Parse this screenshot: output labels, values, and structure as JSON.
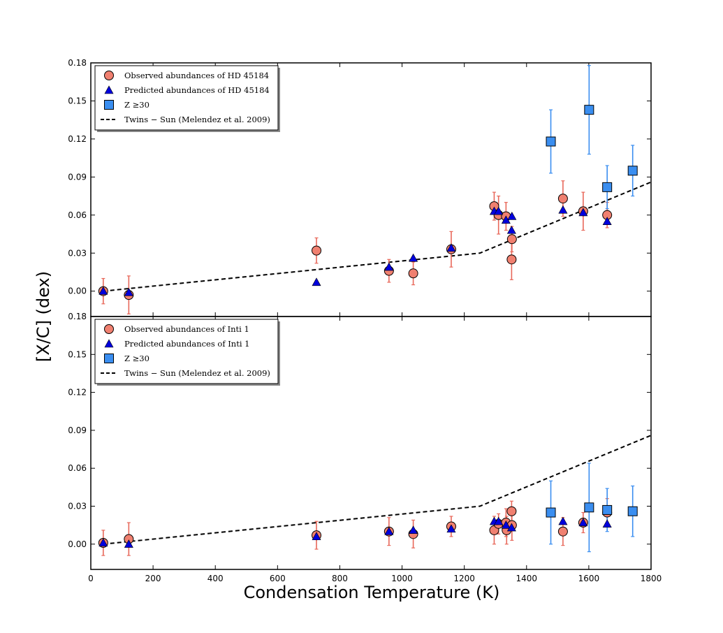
{
  "figure": {
    "xlabel": "Condensation Temperature (K)",
    "ylabel": "[X/C] (dex)",
    "xlim": [
      0,
      1800
    ],
    "x_ticks": [
      0,
      200,
      400,
      600,
      800,
      1000,
      1200,
      1400,
      1600,
      1800
    ],
    "y_ticks": [
      "0.00",
      "0.03",
      "0.06",
      "0.09",
      "0.12",
      "0.15",
      "0.18"
    ]
  },
  "colors": {
    "observed": "#f08070",
    "observed_err": "#e8685a",
    "predicted": "#0000dd",
    "heavy": "#3a8ef0",
    "heavy_err": "#3a8ef0",
    "trend": "#000000"
  },
  "chart_data": [
    {
      "type": "scatter",
      "panel": "top",
      "ylim": [
        -0.02,
        0.18
      ],
      "legend": {
        "placement": "top-left",
        "entries": [
          "Observed abundances of HD 45184",
          "Predicted abundances of HD 45184",
          "Z ≥30",
          "Twins − Sun (Melendez et al. 2009)"
        ]
      },
      "series": [
        {
          "name": "Observed abundances of HD 45184",
          "marker": "circle",
          "points": [
            {
              "x": 40,
              "y": 0.0,
              "err": 0.01
            },
            {
              "x": 122,
              "y": -0.003,
              "err": 0.015
            },
            {
              "x": 725,
              "y": 0.032,
              "err": 0.01
            },
            {
              "x": 958,
              "y": 0.016,
              "err": 0.009
            },
            {
              "x": 1036,
              "y": 0.014,
              "err": 0.009
            },
            {
              "x": 1158,
              "y": 0.033,
              "err": 0.014
            },
            {
              "x": 1296,
              "y": 0.067,
              "err": 0.011
            },
            {
              "x": 1310,
              "y": 0.06,
              "err": 0.015
            },
            {
              "x": 1334,
              "y": 0.059,
              "err": 0.011
            },
            {
              "x": 1352,
              "y": 0.025,
              "err": 0.016
            },
            {
              "x": 1353,
              "y": 0.041,
              "err": 0.01
            },
            {
              "x": 1517,
              "y": 0.073,
              "err": 0.014
            },
            {
              "x": 1582,
              "y": 0.063,
              "err": 0.015
            },
            {
              "x": 1659,
              "y": 0.06,
              "err": 0.01
            }
          ]
        },
        {
          "name": "Predicted abundances of HD 45184",
          "marker": "triangle",
          "points": [
            {
              "x": 40,
              "y": 0.0
            },
            {
              "x": 122,
              "y": -0.001
            },
            {
              "x": 725,
              "y": 0.007
            },
            {
              "x": 958,
              "y": 0.019
            },
            {
              "x": 1036,
              "y": 0.026
            },
            {
              "x": 1158,
              "y": 0.034
            },
            {
              "x": 1296,
              "y": 0.063
            },
            {
              "x": 1310,
              "y": 0.063
            },
            {
              "x": 1334,
              "y": 0.056
            },
            {
              "x": 1352,
              "y": 0.048
            },
            {
              "x": 1353,
              "y": 0.059
            },
            {
              "x": 1517,
              "y": 0.064
            },
            {
              "x": 1582,
              "y": 0.062
            },
            {
              "x": 1659,
              "y": 0.055
            }
          ]
        },
        {
          "name": "Z ≥30",
          "marker": "square",
          "points": [
            {
              "x": 1478,
              "y": 0.118,
              "err": 0.025
            },
            {
              "x": 1601,
              "y": 0.143,
              "err": 0.035
            },
            {
              "x": 1659,
              "y": 0.082,
              "err": 0.017
            },
            {
              "x": 1741,
              "y": 0.095,
              "err": 0.02
            }
          ]
        },
        {
          "name": "Twins − Sun (Melendez et al. 2009)",
          "marker": "dashed-line",
          "points": [
            {
              "x": 40,
              "y": 0.0
            },
            {
              "x": 1250,
              "y": 0.03
            },
            {
              "x": 1800,
              "y": 0.086
            }
          ]
        }
      ]
    },
    {
      "type": "scatter",
      "panel": "bottom",
      "ylim": [
        -0.02,
        0.18
      ],
      "legend": {
        "placement": "top-left",
        "entries": [
          "Observed abundances of Inti 1",
          "Predicted abundances of Inti 1",
          "Z ≥30",
          "Twins − Sun (Melendez et al. 2009)"
        ]
      },
      "series": [
        {
          "name": "Observed abundances of Inti 1",
          "marker": "circle",
          "points": [
            {
              "x": 40,
              "y": 0.001,
              "err": 0.01
            },
            {
              "x": 122,
              "y": 0.004,
              "err": 0.013
            },
            {
              "x": 725,
              "y": 0.007,
              "err": 0.011
            },
            {
              "x": 958,
              "y": 0.01,
              "err": 0.011
            },
            {
              "x": 1036,
              "y": 0.008,
              "err": 0.011
            },
            {
              "x": 1158,
              "y": 0.014,
              "err": 0.008
            },
            {
              "x": 1296,
              "y": 0.011,
              "err": 0.011
            },
            {
              "x": 1310,
              "y": 0.016,
              "err": 0.008
            },
            {
              "x": 1334,
              "y": 0.017,
              "err": 0.011
            },
            {
              "x": 1336,
              "y": 0.011,
              "err": 0.011
            },
            {
              "x": 1352,
              "y": 0.026,
              "err": 0.008
            },
            {
              "x": 1353,
              "y": 0.015,
              "err": 0.012
            },
            {
              "x": 1517,
              "y": 0.01,
              "err": 0.011
            },
            {
              "x": 1582,
              "y": 0.017,
              "err": 0.008
            },
            {
              "x": 1659,
              "y": 0.025,
              "err": 0.011
            }
          ]
        },
        {
          "name": "Predicted abundances of Inti 1",
          "marker": "triangle",
          "points": [
            {
              "x": 40,
              "y": 0.001
            },
            {
              "x": 122,
              "y": 0.0
            },
            {
              "x": 725,
              "y": 0.006
            },
            {
              "x": 958,
              "y": 0.01
            },
            {
              "x": 1036,
              "y": 0.011
            },
            {
              "x": 1158,
              "y": 0.012
            },
            {
              "x": 1296,
              "y": 0.018
            },
            {
              "x": 1310,
              "y": 0.018
            },
            {
              "x": 1334,
              "y": 0.015
            },
            {
              "x": 1352,
              "y": 0.013
            },
            {
              "x": 1517,
              "y": 0.018
            },
            {
              "x": 1582,
              "y": 0.017
            },
            {
              "x": 1659,
              "y": 0.016
            }
          ]
        },
        {
          "name": "Z ≥30",
          "marker": "square",
          "points": [
            {
              "x": 1478,
              "y": 0.025,
              "err": 0.025
            },
            {
              "x": 1601,
              "y": 0.029,
              "err": 0.035
            },
            {
              "x": 1659,
              "y": 0.027,
              "err": 0.017
            },
            {
              "x": 1741,
              "y": 0.026,
              "err": 0.02
            }
          ]
        },
        {
          "name": "Twins − Sun (Melendez et al. 2009)",
          "marker": "dashed-line",
          "points": [
            {
              "x": 40,
              "y": 0.0
            },
            {
              "x": 1250,
              "y": 0.03
            },
            {
              "x": 1800,
              "y": 0.086
            }
          ]
        }
      ]
    }
  ]
}
